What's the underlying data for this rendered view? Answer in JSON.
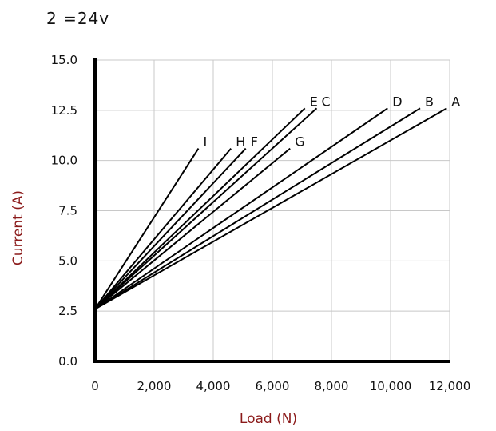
{
  "heading": "2 =24v",
  "colors": {
    "axis_title": "#8b1a1a",
    "line": "#000000",
    "grid": "#c8c8c8",
    "axis": "#000000"
  },
  "chart_data": {
    "type": "line",
    "title": "",
    "xlabel": "Load (N)",
    "ylabel": "Current (A)",
    "xlim": [
      0,
      12000
    ],
    "ylim": [
      0,
      15
    ],
    "grid": true,
    "legend": "none",
    "x_ticks": [
      "0",
      "2,000",
      "4,000",
      "6,000",
      "8,000",
      "10,000",
      "12,000"
    ],
    "y_ticks": [
      "0.0",
      "2.5",
      "5.0",
      "7.5",
      "10.0",
      "12.5",
      "15.0"
    ],
    "series": [
      {
        "name": "A",
        "points": [
          [
            0,
            2.6
          ],
          [
            11900,
            12.6
          ]
        ]
      },
      {
        "name": "B",
        "points": [
          [
            0,
            2.6
          ],
          [
            11000,
            12.6
          ]
        ]
      },
      {
        "name": "C",
        "points": [
          [
            0,
            2.6
          ],
          [
            7500,
            12.6
          ]
        ]
      },
      {
        "name": "D",
        "points": [
          [
            0,
            2.6
          ],
          [
            9900,
            12.6
          ]
        ]
      },
      {
        "name": "E",
        "points": [
          [
            0,
            2.6
          ],
          [
            7100,
            12.6
          ]
        ]
      },
      {
        "name": "F",
        "points": [
          [
            0,
            2.6
          ],
          [
            5100,
            10.6
          ]
        ]
      },
      {
        "name": "G",
        "points": [
          [
            0,
            2.6
          ],
          [
            6600,
            10.6
          ]
        ]
      },
      {
        "name": "H",
        "points": [
          [
            0,
            2.6
          ],
          [
            4600,
            10.6
          ]
        ]
      },
      {
        "name": "I",
        "points": [
          [
            0,
            2.6
          ],
          [
            3500,
            10.6
          ]
        ]
      }
    ]
  }
}
